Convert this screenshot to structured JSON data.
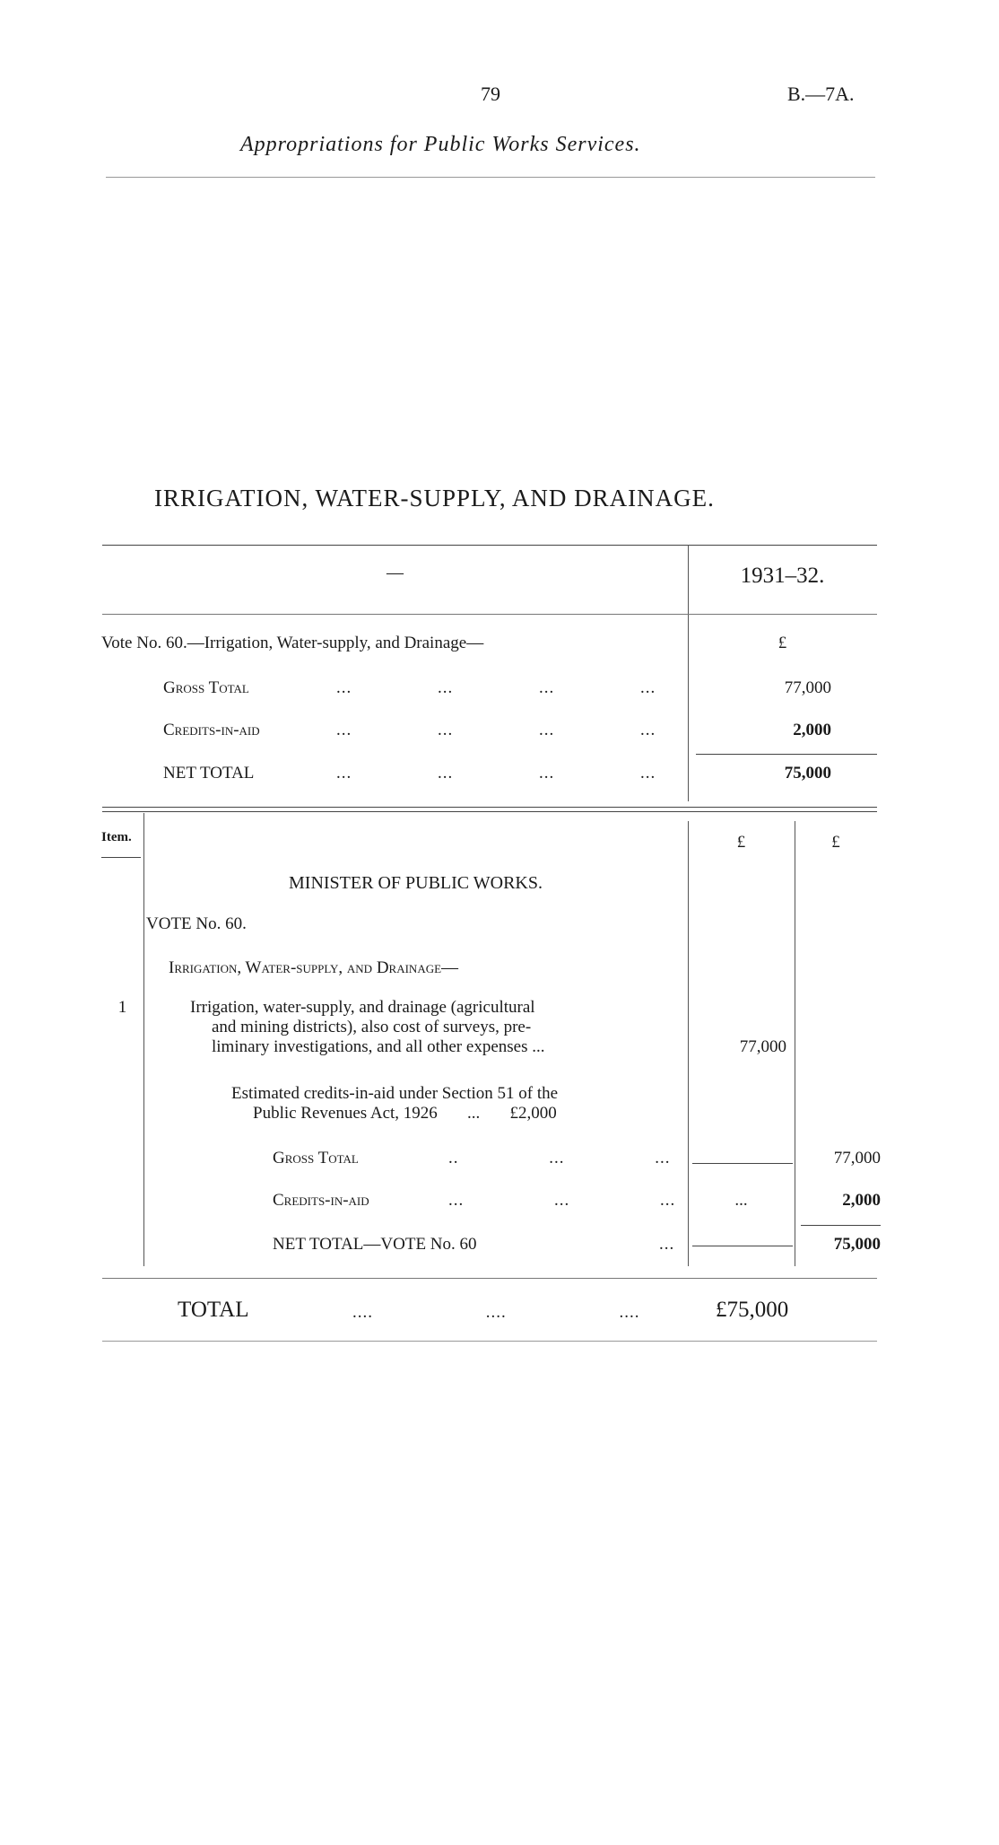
{
  "header": {
    "page_number": "79",
    "doc_ref": "B.—7A.",
    "running_title": "Appropriations for Public Works Services."
  },
  "section_title": "IRRIGATION, WATER-SUPPLY, AND DRAINAGE.",
  "summary": {
    "head_dash": "—",
    "year_header": "1931–32.",
    "vote_line": "Vote No. 60.—Irrigation, Water-supply, and Drainage—",
    "currency": "£",
    "rows": [
      {
        "label": "Gross Total",
        "value": "77,000"
      },
      {
        "label": "Credits-in-aid",
        "value": "2,000"
      },
      {
        "label": "NET TOTAL",
        "value": "75,000"
      }
    ]
  },
  "detail": {
    "item_header": "Item.",
    "currency_1": "£",
    "currency_2": "£",
    "minister": "MINISTER OF PUBLIC WORKS.",
    "vote": "VOTE No. 60.",
    "subhead": "Irrigation, Water-supply, and Drainage—",
    "item_number": "1",
    "item_lines": [
      "Irrigation, water-supply, and drainage (agricultural",
      "and mining districts), also cost of surveys, pre-",
      "liminary investigations, and all other expenses  ..."
    ],
    "item_value": "77,000",
    "credits_note_lines": [
      "Estimated credits-in-aid under Section 51 of the",
      "Public Revenues Act, 1926       ...       £2,000"
    ],
    "gross_label": "Gross Total",
    "gross_value": "77,000",
    "credits_label": "Credits-in-aid",
    "credits_col1": "...",
    "credits_value": "2,000",
    "net_label": "NET TOTAL—VOTE No. 60",
    "net_value": "75,000"
  },
  "total": {
    "label": "TOTAL",
    "value": "£75,000"
  }
}
